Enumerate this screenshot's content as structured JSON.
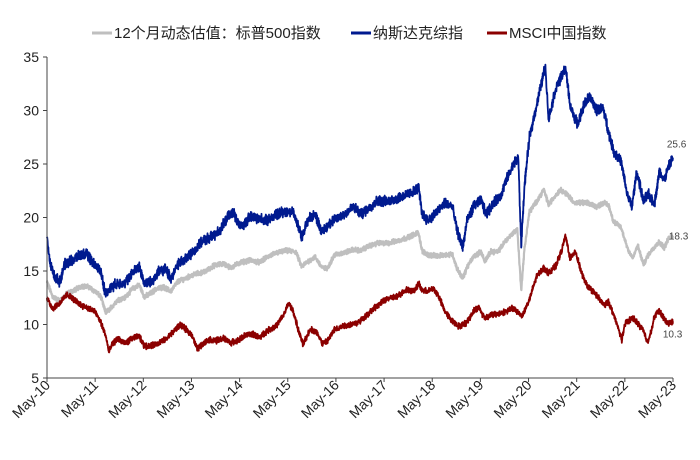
{
  "chart_data": {
    "type": "line",
    "title": "",
    "xlabel": "",
    "ylabel": "",
    "ylim": [
      5,
      35
    ],
    "y_ticks": [
      5,
      10,
      15,
      20,
      25,
      30,
      35
    ],
    "x_ticks": [
      "May-10",
      "May-11",
      "May-12",
      "May-13",
      "May-14",
      "May-15",
      "May-16",
      "May-17",
      "May-18",
      "May-19",
      "May-20",
      "May-21",
      "May-22",
      "May-23"
    ],
    "x_range": [
      2010.333,
      2023.333
    ],
    "grid": false,
    "legend_position": "top",
    "series": [
      {
        "name": "12个月动态估值：标普500指数",
        "color": "#BFBFBF",
        "end_label": "18.3",
        "points": [
          [
            2010.33,
            14.0
          ],
          [
            2010.45,
            12.6
          ],
          [
            2010.6,
            12.2
          ],
          [
            2010.75,
            12.9
          ],
          [
            2010.9,
            13.2
          ],
          [
            2011.05,
            13.6
          ],
          [
            2011.2,
            13.5
          ],
          [
            2011.33,
            13.1
          ],
          [
            2011.45,
            12.6
          ],
          [
            2011.55,
            11.1
          ],
          [
            2011.65,
            11.5
          ],
          [
            2011.8,
            12.3
          ],
          [
            2011.95,
            12.5
          ],
          [
            2012.1,
            13.3
          ],
          [
            2012.25,
            13.7
          ],
          [
            2012.35,
            12.6
          ],
          [
            2012.45,
            12.8
          ],
          [
            2012.6,
            13.3
          ],
          [
            2012.75,
            13.5
          ],
          [
            2012.9,
            13.1
          ],
          [
            2013.05,
            14.0
          ],
          [
            2013.2,
            14.3
          ],
          [
            2013.4,
            14.7
          ],
          [
            2013.6,
            14.9
          ],
          [
            2013.8,
            15.5
          ],
          [
            2014.0,
            15.7
          ],
          [
            2014.15,
            15.3
          ],
          [
            2014.35,
            15.8
          ],
          [
            2014.55,
            16.0
          ],
          [
            2014.75,
            15.8
          ],
          [
            2014.9,
            16.3
          ],
          [
            2015.1,
            16.7
          ],
          [
            2015.3,
            16.9
          ],
          [
            2015.5,
            16.8
          ],
          [
            2015.62,
            15.4
          ],
          [
            2015.75,
            15.9
          ],
          [
            2015.9,
            16.3
          ],
          [
            2016.05,
            15.3
          ],
          [
            2016.15,
            15.2
          ],
          [
            2016.3,
            16.5
          ],
          [
            2016.5,
            16.7
          ],
          [
            2016.7,
            17.0
          ],
          [
            2016.85,
            16.9
          ],
          [
            2017.0,
            17.3
          ],
          [
            2017.2,
            17.6
          ],
          [
            2017.4,
            17.6
          ],
          [
            2017.6,
            17.8
          ],
          [
            2017.8,
            18.1
          ],
          [
            2017.95,
            18.4
          ],
          [
            2018.05,
            18.6
          ],
          [
            2018.12,
            16.9
          ],
          [
            2018.25,
            16.5
          ],
          [
            2018.45,
            16.4
          ],
          [
            2018.6,
            16.5
          ],
          [
            2018.75,
            16.6
          ],
          [
            2018.85,
            15.2
          ],
          [
            2018.97,
            14.3
          ],
          [
            2019.05,
            15.3
          ],
          [
            2019.2,
            16.4
          ],
          [
            2019.35,
            16.8
          ],
          [
            2019.42,
            15.9
          ],
          [
            2019.55,
            16.8
          ],
          [
            2019.7,
            16.8
          ],
          [
            2019.85,
            17.8
          ],
          [
            2020.0,
            18.5
          ],
          [
            2020.1,
            18.9
          ],
          [
            2020.18,
            13.2
          ],
          [
            2020.25,
            17.1
          ],
          [
            2020.35,
            20.5
          ],
          [
            2020.5,
            21.5
          ],
          [
            2020.65,
            22.6
          ],
          [
            2020.75,
            21.2
          ],
          [
            2020.9,
            22.1
          ],
          [
            2021.0,
            22.6
          ],
          [
            2021.15,
            22.1
          ],
          [
            2021.3,
            21.3
          ],
          [
            2021.45,
            21.4
          ],
          [
            2021.6,
            21.3
          ],
          [
            2021.75,
            21.0
          ],
          [
            2021.9,
            21.4
          ],
          [
            2022.0,
            21.1
          ],
          [
            2022.1,
            19.6
          ],
          [
            2022.25,
            19.1
          ],
          [
            2022.4,
            17.0
          ],
          [
            2022.5,
            16.2
          ],
          [
            2022.6,
            17.4
          ],
          [
            2022.72,
            15.6
          ],
          [
            2022.82,
            16.5
          ],
          [
            2022.95,
            17.3
          ],
          [
            2023.05,
            17.7
          ],
          [
            2023.15,
            17.2
          ],
          [
            2023.25,
            18.1
          ],
          [
            2023.33,
            18.3
          ]
        ]
      },
      {
        "name": "纳斯达克综指",
        "color": "#001A8F",
        "end_label": "25.6",
        "points": [
          [
            2010.33,
            18.2
          ],
          [
            2010.4,
            15.6
          ],
          [
            2010.5,
            14.4
          ],
          [
            2010.6,
            14.0
          ],
          [
            2010.7,
            15.6
          ],
          [
            2010.85,
            16.0
          ],
          [
            2011.0,
            16.4
          ],
          [
            2011.15,
            16.6
          ],
          [
            2011.3,
            15.7
          ],
          [
            2011.45,
            15.0
          ],
          [
            2011.55,
            12.8
          ],
          [
            2011.65,
            13.4
          ],
          [
            2011.8,
            13.9
          ],
          [
            2011.95,
            13.8
          ],
          [
            2012.1,
            14.8
          ],
          [
            2012.25,
            15.4
          ],
          [
            2012.35,
            13.9
          ],
          [
            2012.5,
            14.0
          ],
          [
            2012.65,
            14.9
          ],
          [
            2012.8,
            15.2
          ],
          [
            2012.9,
            14.3
          ],
          [
            2013.05,
            15.6
          ],
          [
            2013.25,
            16.3
          ],
          [
            2013.45,
            17.2
          ],
          [
            2013.6,
            17.9
          ],
          [
            2013.8,
            18.3
          ],
          [
            2013.95,
            19.0
          ],
          [
            2014.1,
            20.1
          ],
          [
            2014.2,
            20.5
          ],
          [
            2014.35,
            19.0
          ],
          [
            2014.55,
            20.1
          ],
          [
            2014.75,
            19.9
          ],
          [
            2014.9,
            19.7
          ],
          [
            2015.05,
            20.2
          ],
          [
            2015.25,
            20.6
          ],
          [
            2015.45,
            20.5
          ],
          [
            2015.62,
            18.2
          ],
          [
            2015.75,
            19.8
          ],
          [
            2015.9,
            20.3
          ],
          [
            2016.05,
            18.6
          ],
          [
            2016.2,
            19.5
          ],
          [
            2016.35,
            19.9
          ],
          [
            2016.5,
            20.3
          ],
          [
            2016.7,
            21.0
          ],
          [
            2016.85,
            20.3
          ],
          [
            2017.0,
            20.8
          ],
          [
            2017.2,
            21.6
          ],
          [
            2017.4,
            21.5
          ],
          [
            2017.6,
            21.8
          ],
          [
            2017.8,
            22.1
          ],
          [
            2017.95,
            22.4
          ],
          [
            2018.05,
            22.8
          ],
          [
            2018.12,
            20.4
          ],
          [
            2018.25,
            19.7
          ],
          [
            2018.45,
            20.6
          ],
          [
            2018.6,
            21.4
          ],
          [
            2018.75,
            21.0
          ],
          [
            2018.85,
            18.8
          ],
          [
            2018.97,
            17.2
          ],
          [
            2019.05,
            19.6
          ],
          [
            2019.2,
            21.1
          ],
          [
            2019.35,
            21.6
          ],
          [
            2019.45,
            20.3
          ],
          [
            2019.6,
            21.3
          ],
          [
            2019.75,
            22.0
          ],
          [
            2019.9,
            23.8
          ],
          [
            2020.05,
            25.2
          ],
          [
            2020.12,
            25.6
          ],
          [
            2020.18,
            17.4
          ],
          [
            2020.25,
            23.0
          ],
          [
            2020.35,
            27.4
          ],
          [
            2020.5,
            30.5
          ],
          [
            2020.6,
            32.5
          ],
          [
            2020.68,
            34.2
          ],
          [
            2020.75,
            29.2
          ],
          [
            2020.9,
            32.1
          ],
          [
            2021.0,
            33.0
          ],
          [
            2021.1,
            34.0
          ],
          [
            2021.2,
            30.4
          ],
          [
            2021.35,
            28.7
          ],
          [
            2021.5,
            30.7
          ],
          [
            2021.6,
            31.3
          ],
          [
            2021.75,
            30.0
          ],
          [
            2021.88,
            30.3
          ],
          [
            2022.0,
            27.9
          ],
          [
            2022.1,
            26.2
          ],
          [
            2022.25,
            25.3
          ],
          [
            2022.38,
            22.2
          ],
          [
            2022.48,
            21.0
          ],
          [
            2022.58,
            24.3
          ],
          [
            2022.72,
            21.5
          ],
          [
            2022.82,
            22.2
          ],
          [
            2022.95,
            21.3
          ],
          [
            2023.05,
            24.3
          ],
          [
            2023.15,
            23.5
          ],
          [
            2023.25,
            24.8
          ],
          [
            2023.33,
            25.6
          ]
        ]
      },
      {
        "name": "MSCI中国指数",
        "color": "#8B0000",
        "end_label": "10.3",
        "points": [
          [
            2010.33,
            12.5
          ],
          [
            2010.45,
            11.5
          ],
          [
            2010.6,
            12.0
          ],
          [
            2010.75,
            12.8
          ],
          [
            2010.9,
            12.3
          ],
          [
            2011.05,
            11.8
          ],
          [
            2011.2,
            11.5
          ],
          [
            2011.33,
            11.2
          ],
          [
            2011.45,
            10.2
          ],
          [
            2011.55,
            9.0
          ],
          [
            2011.62,
            7.4
          ],
          [
            2011.68,
            8.1
          ],
          [
            2011.8,
            8.7
          ],
          [
            2011.95,
            8.2
          ],
          [
            2012.1,
            8.7
          ],
          [
            2012.25,
            8.9
          ],
          [
            2012.35,
            8.0
          ],
          [
            2012.5,
            8.0
          ],
          [
            2012.65,
            8.3
          ],
          [
            2012.8,
            8.6
          ],
          [
            2012.95,
            9.3
          ],
          [
            2013.1,
            10.0
          ],
          [
            2013.2,
            9.6
          ],
          [
            2013.35,
            9.0
          ],
          [
            2013.45,
            7.7
          ],
          [
            2013.55,
            8.1
          ],
          [
            2013.7,
            8.6
          ],
          [
            2013.85,
            8.5
          ],
          [
            2014.0,
            8.7
          ],
          [
            2014.15,
            8.3
          ],
          [
            2014.3,
            8.5
          ],
          [
            2014.45,
            9.0
          ],
          [
            2014.6,
            9.1
          ],
          [
            2014.75,
            8.8
          ],
          [
            2014.9,
            9.4
          ],
          [
            2015.1,
            9.9
          ],
          [
            2015.25,
            10.9
          ],
          [
            2015.35,
            12.0
          ],
          [
            2015.45,
            11.2
          ],
          [
            2015.55,
            9.5
          ],
          [
            2015.65,
            8.1
          ],
          [
            2015.8,
            9.6
          ],
          [
            2015.95,
            9.2
          ],
          [
            2016.05,
            8.2
          ],
          [
            2016.15,
            8.4
          ],
          [
            2016.3,
            9.5
          ],
          [
            2016.5,
            9.9
          ],
          [
            2016.65,
            10.0
          ],
          [
            2016.8,
            10.2
          ],
          [
            2017.0,
            11.0
          ],
          [
            2017.2,
            11.8
          ],
          [
            2017.4,
            12.4
          ],
          [
            2017.6,
            12.6
          ],
          [
            2017.8,
            13.3
          ],
          [
            2017.95,
            13.1
          ],
          [
            2018.05,
            13.8
          ],
          [
            2018.12,
            13.2
          ],
          [
            2018.25,
            13.1
          ],
          [
            2018.35,
            13.4
          ],
          [
            2018.45,
            12.8
          ],
          [
            2018.6,
            11.2
          ],
          [
            2018.75,
            10.3
          ],
          [
            2018.9,
            9.8
          ],
          [
            2019.05,
            10.2
          ],
          [
            2019.2,
            11.3
          ],
          [
            2019.3,
            11.6
          ],
          [
            2019.42,
            10.6
          ],
          [
            2019.55,
            10.9
          ],
          [
            2019.7,
            11.0
          ],
          [
            2019.85,
            11.2
          ],
          [
            2020.0,
            11.5
          ],
          [
            2020.1,
            11.2
          ],
          [
            2020.2,
            10.8
          ],
          [
            2020.35,
            12.3
          ],
          [
            2020.5,
            14.5
          ],
          [
            2020.65,
            15.3
          ],
          [
            2020.75,
            14.8
          ],
          [
            2020.9,
            15.5
          ],
          [
            2021.02,
            16.9
          ],
          [
            2021.1,
            18.3
          ],
          [
            2021.2,
            16.1
          ],
          [
            2021.3,
            16.9
          ],
          [
            2021.45,
            14.6
          ],
          [
            2021.55,
            13.6
          ],
          [
            2021.65,
            13.2
          ],
          [
            2021.75,
            12.7
          ],
          [
            2021.9,
            11.8
          ],
          [
            2022.0,
            12.1
          ],
          [
            2022.1,
            10.9
          ],
          [
            2022.2,
            9.6
          ],
          [
            2022.27,
            8.6
          ],
          [
            2022.35,
            10.2
          ],
          [
            2022.5,
            10.6
          ],
          [
            2022.6,
            10.1
          ],
          [
            2022.7,
            9.6
          ],
          [
            2022.8,
            8.4
          ],
          [
            2022.88,
            9.3
          ],
          [
            2022.95,
            10.8
          ],
          [
            2023.05,
            11.3
          ],
          [
            2023.15,
            10.5
          ],
          [
            2023.25,
            10.1
          ],
          [
            2023.33,
            10.3
          ]
        ]
      }
    ]
  }
}
